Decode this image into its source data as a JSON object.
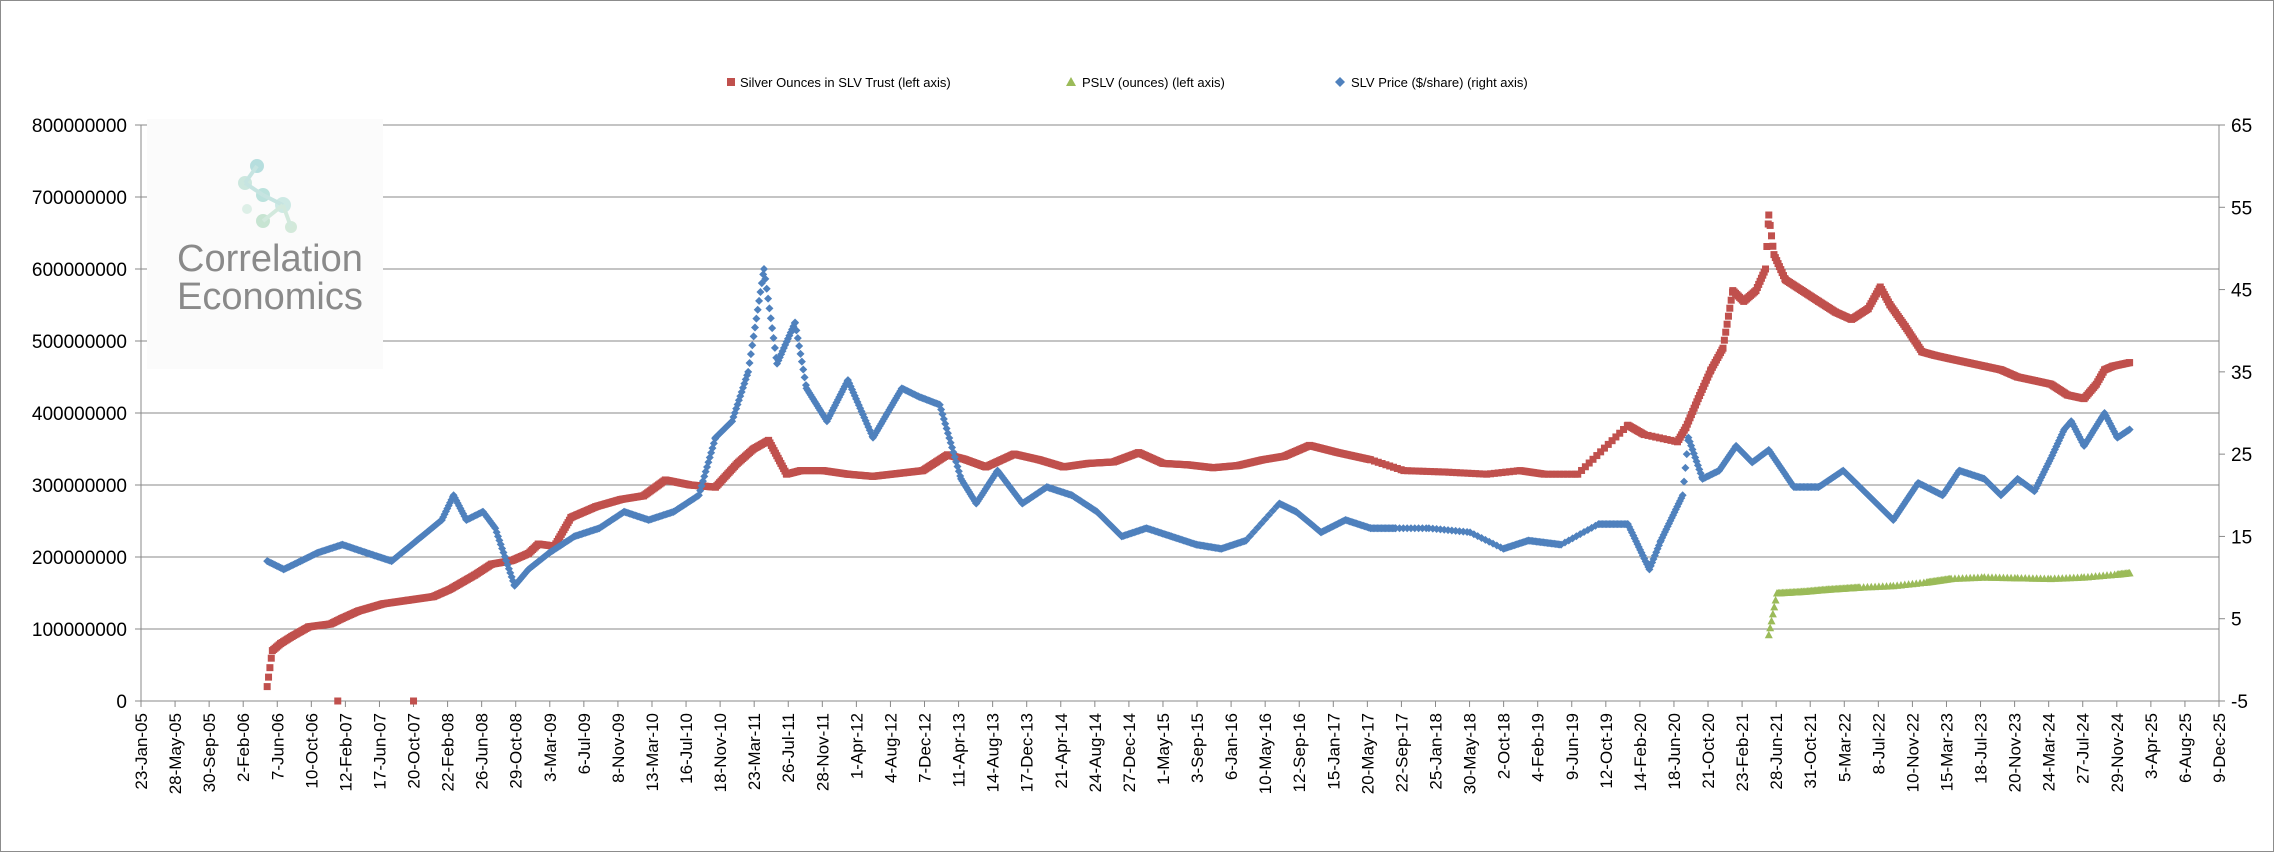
{
  "chart_data": {
    "type": "scatter",
    "title": "",
    "watermark": [
      "Correlation",
      "Economics"
    ],
    "legend": {
      "placement": "top",
      "entries": [
        {
          "series": "slv_ounces",
          "label": "Silver Ounces in SLV Trust (left axis)"
        },
        {
          "series": "pslv",
          "label": "PSLV (ounces) (left axis)"
        },
        {
          "series": "slv_price",
          "label": "SLV Price ($/share) (right axis)"
        }
      ]
    },
    "axes": {
      "x": {
        "type": "date",
        "range": [
          "2005-01-23",
          "2025-12-09"
        ],
        "tick_labels": [
          "23-Jan-05",
          "28-May-05",
          "30-Sep-05",
          "2-Feb-06",
          "7-Jun-06",
          "10-Oct-06",
          "12-Feb-07",
          "17-Jun-07",
          "20-Oct-07",
          "22-Feb-08",
          "26-Jun-08",
          "29-Oct-08",
          "3-Mar-09",
          "6-Jul-09",
          "8-Nov-09",
          "13-Mar-10",
          "16-Jul-10",
          "18-Nov-10",
          "23-Mar-11",
          "26-Jul-11",
          "28-Nov-11",
          "1-Apr-12",
          "4-Aug-12",
          "7-Dec-12",
          "11-Apr-13",
          "14-Aug-13",
          "17-Dec-13",
          "21-Apr-14",
          "24-Aug-14",
          "27-Dec-14",
          "1-May-15",
          "3-Sep-15",
          "6-Jan-16",
          "10-May-16",
          "12-Sep-16",
          "15-Jan-17",
          "20-May-17",
          "22-Sep-17",
          "25-Jan-18",
          "30-May-18",
          "2-Oct-18",
          "4-Feb-19",
          "9-Jun-19",
          "12-Oct-19",
          "14-Feb-20",
          "18-Jun-20",
          "21-Oct-20",
          "23-Feb-21",
          "28-Jun-21",
          "31-Oct-21",
          "5-Mar-22",
          "8-Jul-22",
          "10-Nov-22",
          "15-Mar-23",
          "18-Jul-23",
          "20-Nov-23",
          "24-Mar-24",
          "27-Jul-24",
          "29-Nov-24",
          "3-Apr-25",
          "6-Aug-25",
          "9-Dec-25"
        ]
      },
      "y_left": {
        "range": [
          0,
          800000000
        ],
        "tick_labels": [
          "0",
          "100000000",
          "200000000",
          "300000000",
          "400000000",
          "500000000",
          "600000000",
          "700000000",
          "800000000"
        ],
        "grid": true
      },
      "y_right": {
        "range": [
          -5,
          65
        ],
        "tick_labels": [
          "-5",
          "5",
          "15",
          "25",
          "35",
          "45",
          "55",
          "65"
        ]
      }
    },
    "series": [
      {
        "id": "slv_ounces",
        "name": "Silver Ounces in SLV Trust (left axis)",
        "axis": "left",
        "color": "#c0504d",
        "marker": "square",
        "points": [
          [
            "2006-05-01",
            20000000
          ],
          [
            "2006-05-20",
            70000000
          ],
          [
            "2006-06-20",
            80000000
          ],
          [
            "2006-08-01",
            90000000
          ],
          [
            "2006-10-01",
            103000000
          ],
          [
            "2006-12-20",
            107000000
          ],
          [
            "2007-02-01",
            115000000
          ],
          [
            "2007-04-01",
            125000000
          ],
          [
            "2007-07-01",
            135000000
          ],
          [
            "2007-10-01",
            140000000
          ],
          [
            "2008-01-01",
            145000000
          ],
          [
            "2008-03-01",
            155000000
          ],
          [
            "2008-06-01",
            175000000
          ],
          [
            "2008-08-01",
            190000000
          ],
          [
            "2008-10-15",
            195000000
          ],
          [
            "2008-12-15",
            205000000
          ],
          [
            "2009-01-20",
            218000000
          ],
          [
            "2009-03-20",
            215000000
          ],
          [
            "2009-05-20",
            255000000
          ],
          [
            "2009-08-20",
            270000000
          ],
          [
            "2009-11-20",
            280000000
          ],
          [
            "2010-02-10",
            285000000
          ],
          [
            "2010-05-01",
            307000000
          ],
          [
            "2010-08-01",
            300000000
          ],
          [
            "2010-11-01",
            297000000
          ],
          [
            "2011-01-20",
            330000000
          ],
          [
            "2011-03-20",
            350000000
          ],
          [
            "2011-05-15",
            362000000
          ],
          [
            "2011-07-20",
            315000000
          ],
          [
            "2011-09-10",
            320000000
          ],
          [
            "2011-12-01",
            320000000
          ],
          [
            "2012-03-01",
            315000000
          ],
          [
            "2012-06-01",
            312000000
          ],
          [
            "2012-09-01",
            316000000
          ],
          [
            "2012-12-01",
            320000000
          ],
          [
            "2013-03-01",
            342000000
          ],
          [
            "2013-05-01",
            336000000
          ],
          [
            "2013-07-20",
            325000000
          ],
          [
            "2013-11-01",
            343000000
          ],
          [
            "2014-02-01",
            335000000
          ],
          [
            "2014-05-01",
            325000000
          ],
          [
            "2014-08-01",
            330000000
          ],
          [
            "2014-11-01",
            332000000
          ],
          [
            "2015-02-01",
            345000000
          ],
          [
            "2015-05-01",
            330000000
          ],
          [
            "2015-08-01",
            328000000
          ],
          [
            "2015-11-01",
            324000000
          ],
          [
            "2016-02-01",
            327000000
          ],
          [
            "2016-05-01",
            335000000
          ],
          [
            "2016-07-20",
            340000000
          ],
          [
            "2016-10-20",
            355000000
          ],
          [
            "2017-02-01",
            345000000
          ],
          [
            "2017-06-01",
            335000000
          ],
          [
            "2017-10-01",
            320000000
          ],
          [
            "2018-03-01",
            318000000
          ],
          [
            "2018-08-01",
            315000000
          ],
          [
            "2018-12-01",
            320000000
          ],
          [
            "2019-03-01",
            315000000
          ],
          [
            "2019-07-01",
            315000000
          ],
          [
            "2020-01-01",
            383000000
          ],
          [
            "2020-03-01",
            370000000
          ],
          [
            "2020-07-01",
            360000000
          ],
          [
            "2020-08-01",
            380000000
          ],
          [
            "2020-09-15",
            420000000
          ],
          [
            "2020-11-01",
            460000000
          ],
          [
            "2020-12-15",
            490000000
          ],
          [
            "2021-01-20",
            570000000
          ],
          [
            "2021-03-01",
            555000000
          ],
          [
            "2021-04-15",
            570000000
          ],
          [
            "2021-05-20",
            600000000
          ],
          [
            "2021-06-01",
            675000000
          ],
          [
            "2021-06-20",
            620000000
          ],
          [
            "2021-08-01",
            585000000
          ],
          [
            "2021-10-01",
            570000000
          ],
          [
            "2021-12-01",
            555000000
          ],
          [
            "2022-02-01",
            540000000
          ],
          [
            "2022-04-01",
            530000000
          ],
          [
            "2022-06-01",
            545000000
          ],
          [
            "2022-07-15",
            575000000
          ],
          [
            "2022-08-20",
            550000000
          ],
          [
            "2022-10-15",
            520000000
          ],
          [
            "2022-12-15",
            485000000
          ],
          [
            "2023-02-01",
            480000000
          ],
          [
            "2023-04-01",
            475000000
          ],
          [
            "2023-06-01",
            470000000
          ],
          [
            "2023-08-01",
            465000000
          ],
          [
            "2023-10-01",
            460000000
          ],
          [
            "2023-12-01",
            450000000
          ],
          [
            "2024-02-01",
            445000000
          ],
          [
            "2024-04-01",
            440000000
          ],
          [
            "2024-06-01",
            425000000
          ],
          [
            "2024-08-01",
            420000000
          ],
          [
            "2024-09-15",
            440000000
          ],
          [
            "2024-10-15",
            460000000
          ],
          [
            "2024-11-15",
            465000000
          ],
          [
            "2025-01-15",
            470000000
          ],
          [
            "2007-01-15",
            0
          ],
          [
            "2007-10-20",
            0
          ]
        ]
      },
      {
        "id": "pslv",
        "name": "PSLV (ounces) (left axis)",
        "axis": "left",
        "color": "#9bbb59",
        "marker": "triangle",
        "points": [
          [
            "2021-06-01",
            92000000
          ],
          [
            "2021-07-01",
            150000000
          ],
          [
            "2021-10-01",
            152000000
          ],
          [
            "2022-01-01",
            155000000
          ],
          [
            "2022-05-01",
            158000000
          ],
          [
            "2022-09-01",
            160000000
          ],
          [
            "2023-01-01",
            165000000
          ],
          [
            "2023-04-01",
            170000000
          ],
          [
            "2023-08-01",
            172000000
          ],
          [
            "2023-12-01",
            171000000
          ],
          [
            "2024-04-01",
            170000000
          ],
          [
            "2024-08-01",
            172000000
          ],
          [
            "2024-12-01",
            176000000
          ],
          [
            "2025-01-15",
            178000000
          ]
        ]
      },
      {
        "id": "slv_price",
        "name": "SLV Price ($/share) (right axis)",
        "axis": "right",
        "color": "#4f81bd",
        "marker": "diamond",
        "points": [
          [
            "2006-05-01",
            12
          ],
          [
            "2006-07-01",
            11
          ],
          [
            "2006-09-01",
            12
          ],
          [
            "2006-11-01",
            13
          ],
          [
            "2007-02-01",
            14
          ],
          [
            "2007-05-01",
            13
          ],
          [
            "2007-08-01",
            12
          ],
          [
            "2007-11-01",
            14.5
          ],
          [
            "2008-02-01",
            17
          ],
          [
            "2008-03-15",
            20
          ],
          [
            "2008-05-01",
            17
          ],
          [
            "2008-07-01",
            18
          ],
          [
            "2008-08-15",
            16
          ],
          [
            "2008-10-25",
            9
          ],
          [
            "2008-12-15",
            11
          ],
          [
            "2009-03-01",
            13
          ],
          [
            "2009-06-01",
            15
          ],
          [
            "2009-09-01",
            16
          ],
          [
            "2009-12-01",
            18
          ],
          [
            "2010-03-01",
            17
          ],
          [
            "2010-06-01",
            18
          ],
          [
            "2010-09-01",
            20
          ],
          [
            "2010-11-01",
            27
          ],
          [
            "2011-01-01",
            29
          ],
          [
            "2011-03-01",
            35
          ],
          [
            "2011-04-28",
            47.5
          ],
          [
            "2011-06-15",
            36
          ],
          [
            "2011-08-20",
            41
          ],
          [
            "2011-10-01",
            33
          ],
          [
            "2011-12-15",
            29
          ],
          [
            "2012-03-01",
            34
          ],
          [
            "2012-06-01",
            27
          ],
          [
            "2012-09-15",
            33
          ],
          [
            "2012-11-15",
            32
          ],
          [
            "2013-02-01",
            31
          ],
          [
            "2013-04-20",
            22
          ],
          [
            "2013-06-15",
            19
          ],
          [
            "2013-09-01",
            23
          ],
          [
            "2013-12-01",
            19
          ],
          [
            "2014-03-01",
            21
          ],
          [
            "2014-06-01",
            20
          ],
          [
            "2014-09-01",
            18
          ],
          [
            "2014-12-01",
            15
          ],
          [
            "2015-03-01",
            16
          ],
          [
            "2015-06-01",
            15
          ],
          [
            "2015-09-01",
            14
          ],
          [
            "2015-12-01",
            13.5
          ],
          [
            "2016-03-01",
            14.5
          ],
          [
            "2016-07-01",
            19
          ],
          [
            "2016-09-01",
            18
          ],
          [
            "2016-12-01",
            15.5
          ],
          [
            "2017-03-01",
            17
          ],
          [
            "2017-06-01",
            16
          ],
          [
            "2017-09-01",
            16
          ],
          [
            "2018-01-01",
            16
          ],
          [
            "2018-06-01",
            15.5
          ],
          [
            "2018-10-01",
            13.5
          ],
          [
            "2019-01-01",
            14.5
          ],
          [
            "2019-05-01",
            14
          ],
          [
            "2019-09-15",
            16.5
          ],
          [
            "2020-01-01",
            16.5
          ],
          [
            "2020-03-20",
            11
          ],
          [
            "2020-05-01",
            14.5
          ],
          [
            "2020-07-20",
            20
          ],
          [
            "2020-08-10",
            27
          ],
          [
            "2020-10-01",
            22
          ],
          [
            "2020-12-01",
            23
          ],
          [
            "2021-02-01",
            26
          ],
          [
            "2021-04-01",
            24
          ],
          [
            "2021-06-01",
            25.5
          ],
          [
            "2021-09-01",
            21
          ],
          [
            "2021-12-01",
            21
          ],
          [
            "2022-03-01",
            23
          ],
          [
            "2022-06-01",
            20
          ],
          [
            "2022-09-01",
            17
          ],
          [
            "2022-12-01",
            21.5
          ],
          [
            "2023-03-01",
            20
          ],
          [
            "2023-05-01",
            23
          ],
          [
            "2023-08-01",
            22
          ],
          [
            "2023-10-01",
            20
          ],
          [
            "2023-12-01",
            22
          ],
          [
            "2024-02-01",
            20.5
          ],
          [
            "2024-04-01",
            24.5
          ],
          [
            "2024-05-20",
            28
          ],
          [
            "2024-06-15",
            29
          ],
          [
            "2024-08-01",
            26
          ],
          [
            "2024-10-15",
            30
          ],
          [
            "2024-12-01",
            27
          ],
          [
            "2025-01-15",
            28
          ]
        ]
      }
    ]
  }
}
